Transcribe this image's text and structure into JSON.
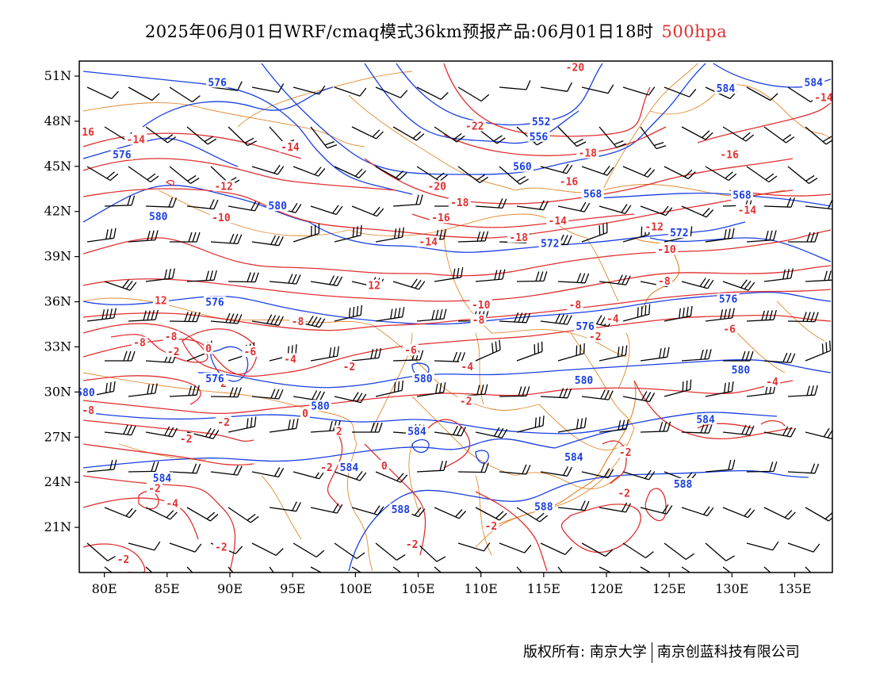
{
  "title": {
    "main": "2025年06月01日WRF/cmaq模式36km预报产品:06月01日18时",
    "level": "500hpa"
  },
  "colors": {
    "temperature": "#e03030",
    "geopotential": "#1a3fe0",
    "border": "#e08a30",
    "wind": "#000000",
    "frame": "#000000"
  },
  "map": {
    "lon_range": [
      78,
      138
    ],
    "lat_range": [
      18,
      52
    ],
    "y_ticks": [
      "51N",
      "48N",
      "45N",
      "42N",
      "39N",
      "36N",
      "33N",
      "30N",
      "27N",
      "24N",
      "21N"
    ],
    "y_tick_values": [
      51,
      48,
      45,
      42,
      39,
      36,
      33,
      30,
      27,
      24,
      21
    ],
    "x_ticks": [
      "80E",
      "85E",
      "90E",
      "95E",
      "100E",
      "105E",
      "110E",
      "115E",
      "120E",
      "125E",
      "130E",
      "135E"
    ],
    "x_tick_values": [
      80,
      85,
      90,
      95,
      100,
      105,
      110,
      115,
      120,
      125,
      130,
      135
    ]
  },
  "temperature_labels": [
    {
      "text": "-20",
      "lon": 117.5,
      "lat": 51.5
    },
    {
      "text": "-22",
      "lon": 109.5,
      "lat": 47.6
    },
    {
      "text": "-18",
      "lon": 118.5,
      "lat": 45.8
    },
    {
      "text": "-16",
      "lon": 129.8,
      "lat": 45.7
    },
    {
      "text": "-14",
      "lon": 137.3,
      "lat": 49.5
    },
    {
      "text": "16",
      "lon": 78.7,
      "lat": 47.2
    },
    {
      "text": "-14",
      "lon": 82.5,
      "lat": 46.7
    },
    {
      "text": "-14",
      "lon": 94.8,
      "lat": 46.2
    },
    {
      "text": "-20",
      "lon": 106.5,
      "lat": 43.6
    },
    {
      "text": "-18",
      "lon": 108.3,
      "lat": 42.5
    },
    {
      "text": "-16",
      "lon": 117.0,
      "lat": 43.9
    },
    {
      "text": "-12",
      "lon": 89.5,
      "lat": 43.6
    },
    {
      "text": "-16",
      "lon": 106.8,
      "lat": 41.5
    },
    {
      "text": "-14",
      "lon": 116.1,
      "lat": 41.3
    },
    {
      "text": "-14",
      "lon": 131.2,
      "lat": 42.0
    },
    {
      "text": "-10",
      "lon": 89.3,
      "lat": 41.5
    },
    {
      "text": "-14",
      "lon": 105.8,
      "lat": 39.9
    },
    {
      "text": "-18",
      "lon": 113.0,
      "lat": 40.2
    },
    {
      "text": "-12",
      "lon": 123.8,
      "lat": 40.9
    },
    {
      "text": "-10",
      "lon": 124.8,
      "lat": 39.4
    },
    {
      "text": "12",
      "lon": 84.5,
      "lat": 36.0
    },
    {
      "text": "12",
      "lon": 101.5,
      "lat": 37.0
    },
    {
      "text": "-8",
      "lon": 124.6,
      "lat": 37.3
    },
    {
      "text": "-10",
      "lon": 110.0,
      "lat": 35.7
    },
    {
      "text": "-8",
      "lon": 117.5,
      "lat": 35.7
    },
    {
      "text": "-8",
      "lon": 95.4,
      "lat": 34.6
    },
    {
      "text": "-8",
      "lon": 109.8,
      "lat": 34.7
    },
    {
      "text": "-4",
      "lon": 120.5,
      "lat": 34.8
    },
    {
      "text": "-8",
      "lon": 82.8,
      "lat": 33.2
    },
    {
      "text": "-8",
      "lon": 85.3,
      "lat": 33.6
    },
    {
      "text": "-6",
      "lon": 129.8,
      "lat": 34.1
    },
    {
      "text": "-2",
      "lon": 85.5,
      "lat": 32.6
    },
    {
      "text": "0",
      "lon": 88.3,
      "lat": 32.8
    },
    {
      "text": "-6",
      "lon": 91.6,
      "lat": 32.6
    },
    {
      "text": "-4",
      "lon": 94.8,
      "lat": 32.1
    },
    {
      "text": "-6",
      "lon": 104.4,
      "lat": 32.7
    },
    {
      "text": "-2",
      "lon": 119.1,
      "lat": 33.6
    },
    {
      "text": "-2",
      "lon": 99.5,
      "lat": 31.6
    },
    {
      "text": "-4",
      "lon": 108.9,
      "lat": 31.6
    },
    {
      "text": "2",
      "lon": 89.5,
      "lat": 30.5
    },
    {
      "text": "-4",
      "lon": 133.2,
      "lat": 30.6
    },
    {
      "text": "-2",
      "lon": 108.8,
      "lat": 29.3
    },
    {
      "text": "-8",
      "lon": 78.7,
      "lat": 28.7
    },
    {
      "text": "0",
      "lon": 96.0,
      "lat": 28.5
    },
    {
      "text": "-2",
      "lon": 89.5,
      "lat": 27.9
    },
    {
      "text": "2",
      "lon": 98.7,
      "lat": 27.3
    },
    {
      "text": "-2",
      "lon": 86.5,
      "lat": 26.8
    },
    {
      "text": "-2",
      "lon": 121.5,
      "lat": 25.9
    },
    {
      "text": "-2",
      "lon": 97.7,
      "lat": 24.9
    },
    {
      "text": "0",
      "lon": 102.3,
      "lat": 25.0
    },
    {
      "text": "-2",
      "lon": 84.0,
      "lat": 23.5
    },
    {
      "text": "-4",
      "lon": 85.4,
      "lat": 22.5
    },
    {
      "text": "-2",
      "lon": 121.4,
      "lat": 23.2
    },
    {
      "text": "-2",
      "lon": 110.8,
      "lat": 21.0
    },
    {
      "text": "-2",
      "lon": 89.3,
      "lat": 19.6
    },
    {
      "text": "-2",
      "lon": 104.5,
      "lat": 19.8
    },
    {
      "text": "-2",
      "lon": 81.5,
      "lat": 18.8
    }
  ],
  "height_labels": [
    {
      "text": "576",
      "lon": 89.0,
      "lat": 50.5
    },
    {
      "text": "584",
      "lon": 129.5,
      "lat": 50.1
    },
    {
      "text": "584",
      "lon": 136.5,
      "lat": 50.5
    },
    {
      "text": "552",
      "lon": 114.8,
      "lat": 47.9
    },
    {
      "text": "556",
      "lon": 114.6,
      "lat": 46.9
    },
    {
      "text": "576",
      "lon": 81.4,
      "lat": 45.7
    },
    {
      "text": "560",
      "lon": 113.3,
      "lat": 44.9
    },
    {
      "text": "568",
      "lon": 118.9,
      "lat": 43.1
    },
    {
      "text": "568",
      "lon": 130.8,
      "lat": 43.0
    },
    {
      "text": "580",
      "lon": 84.3,
      "lat": 41.6
    },
    {
      "text": "580",
      "lon": 93.8,
      "lat": 42.3
    },
    {
      "text": "572",
      "lon": 115.5,
      "lat": 39.8
    },
    {
      "text": "572",
      "lon": 125.8,
      "lat": 40.5
    },
    {
      "text": "576",
      "lon": 88.8,
      "lat": 35.9
    },
    {
      "text": "576",
      "lon": 118.3,
      "lat": 34.3
    },
    {
      "text": "576",
      "lon": 129.7,
      "lat": 36.1
    },
    {
      "text": "576",
      "lon": 88.8,
      "lat": 30.8
    },
    {
      "text": "580",
      "lon": 105.4,
      "lat": 30.8
    },
    {
      "text": "580",
      "lon": 118.2,
      "lat": 30.7
    },
    {
      "text": "580",
      "lon": 130.7,
      "lat": 31.4
    },
    {
      "text": "580",
      "lon": 97.2,
      "lat": 29.0
    },
    {
      "text": "584",
      "lon": 104.9,
      "lat": 27.3
    },
    {
      "text": "584",
      "lon": 117.4,
      "lat": 25.6
    },
    {
      "text": "584",
      "lon": 127.9,
      "lat": 28.1
    },
    {
      "text": "584",
      "lon": 99.5,
      "lat": 24.9
    },
    {
      "text": "584",
      "lon": 84.6,
      "lat": 24.2
    },
    {
      "text": "588",
      "lon": 103.6,
      "lat": 22.1
    },
    {
      "text": "588",
      "lon": 115.0,
      "lat": 22.3
    },
    {
      "text": "588",
      "lon": 126.1,
      "lat": 23.8
    },
    {
      "text": "580",
      "lon": 78.5,
      "lat": 29.9
    }
  ],
  "footer": {
    "left": "版权所有: 南京大学",
    "right": "南京创蓝科技有限公司"
  }
}
